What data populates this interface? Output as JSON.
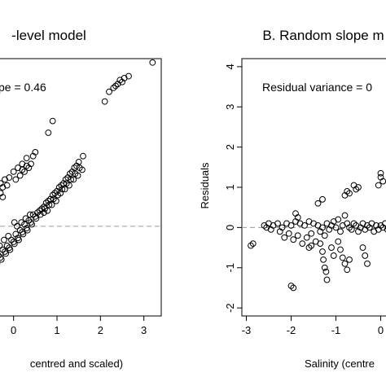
{
  "chart_data": [
    {
      "type": "scatter",
      "title": "-level model",
      "xlabel": "centred and scaled)",
      "ylabel": "",
      "annotation": "pe = 0.46",
      "x_ticks": [
        "0",
        "1",
        "2",
        "3"
      ],
      "xlim": [
        -0.5,
        3.4
      ],
      "ylim": [
        -2.3,
        4.3
      ],
      "reference_line_y": 0,
      "grid": false,
      "marker": "open-circle",
      "series": [
        {
          "points": [
            [
              -0.3,
              1.1
            ],
            [
              -0.2,
              1.2
            ],
            [
              -0.1,
              1.25
            ],
            [
              0.0,
              1.4
            ],
            [
              0.1,
              1.5
            ],
            [
              0.2,
              1.6
            ],
            [
              0.3,
              1.75
            ],
            [
              0.4,
              1.6
            ],
            [
              0.35,
              1.5
            ],
            [
              0.25,
              1.4
            ],
            [
              0.15,
              1.3
            ],
            [
              0.05,
              1.2
            ],
            [
              -0.4,
              0.9
            ],
            [
              -0.3,
              0.85
            ],
            [
              -0.25,
              1.0
            ],
            [
              -0.15,
              1.05
            ],
            [
              0.45,
              1.8
            ],
            [
              0.5,
              1.9
            ],
            [
              0.3,
              1.55
            ],
            [
              0.2,
              1.45
            ],
            [
              0.8,
              2.4
            ],
            [
              0.9,
              2.7
            ],
            [
              -0.25,
              0.75
            ],
            [
              0.02,
              0.1
            ],
            [
              -0.4,
              -0.9
            ],
            [
              -0.3,
              -0.8
            ],
            [
              -0.2,
              -0.65
            ],
            [
              -0.1,
              -0.55
            ],
            [
              0.0,
              -0.4
            ],
            [
              0.1,
              -0.3
            ],
            [
              0.2,
              -0.15
            ],
            [
              0.3,
              -0.05
            ],
            [
              0.4,
              0.1
            ],
            [
              0.5,
              0.25
            ],
            [
              0.6,
              0.4
            ],
            [
              0.7,
              0.5
            ],
            [
              0.8,
              0.65
            ],
            [
              0.9,
              0.8
            ],
            [
              1.0,
              0.9
            ],
            [
              1.1,
              1.05
            ],
            [
              1.2,
              1.2
            ],
            [
              1.3,
              1.35
            ],
            [
              1.4,
              1.5
            ],
            [
              1.5,
              1.65
            ],
            [
              1.6,
              1.8
            ],
            [
              -0.35,
              -0.75
            ],
            [
              -0.25,
              -0.6
            ],
            [
              -0.15,
              -0.5
            ],
            [
              -0.05,
              -0.35
            ],
            [
              0.05,
              -0.2
            ],
            [
              0.15,
              -0.1
            ],
            [
              0.25,
              0.05
            ],
            [
              0.35,
              0.15
            ],
            [
              0.45,
              0.3
            ],
            [
              0.55,
              0.35
            ],
            [
              0.65,
              0.45
            ],
            [
              0.75,
              0.6
            ],
            [
              0.85,
              0.7
            ],
            [
              0.95,
              0.85
            ],
            [
              1.05,
              1.0
            ],
            [
              1.15,
              1.1
            ],
            [
              1.25,
              1.25
            ],
            [
              1.35,
              1.4
            ],
            [
              1.45,
              1.55
            ],
            [
              -0.38,
              -0.95
            ],
            [
              -0.28,
              -0.85
            ],
            [
              -0.18,
              -0.7
            ],
            [
              -0.08,
              -0.6
            ],
            [
              0.02,
              -0.45
            ],
            [
              0.12,
              -0.35
            ],
            [
              0.22,
              -0.2
            ],
            [
              0.32,
              -0.1
            ],
            [
              0.42,
              0.05
            ],
            [
              0.52,
              0.2
            ],
            [
              0.62,
              0.3
            ],
            [
              0.72,
              0.45
            ],
            [
              0.82,
              0.55
            ],
            [
              0.92,
              0.7
            ],
            [
              1.02,
              0.8
            ],
            [
              1.12,
              0.95
            ],
            [
              1.22,
              1.1
            ],
            [
              1.32,
              1.2
            ],
            [
              1.42,
              1.35
            ],
            [
              1.52,
              1.5
            ],
            [
              -0.42,
              -0.6
            ],
            [
              -0.32,
              -0.5
            ],
            [
              -0.22,
              -0.35
            ],
            [
              -0.12,
              -0.25
            ],
            [
              0.08,
              0.0
            ],
            [
              0.18,
              0.1
            ],
            [
              0.28,
              0.2
            ],
            [
              0.38,
              0.3
            ],
            [
              0.7,
              0.35
            ],
            [
              0.78,
              0.4
            ],
            [
              0.88,
              0.55
            ],
            [
              0.98,
              0.65
            ],
            [
              1.08,
              0.85
            ],
            [
              1.18,
              0.95
            ],
            [
              1.28,
              1.05
            ],
            [
              1.38,
              1.2
            ],
            [
              1.48,
              1.3
            ],
            [
              1.58,
              1.45
            ],
            [
              2.1,
              3.2
            ],
            [
              2.2,
              3.45
            ],
            [
              2.3,
              3.55
            ],
            [
              2.35,
              3.6
            ],
            [
              2.4,
              3.65
            ],
            [
              2.45,
              3.75
            ],
            [
              2.5,
              3.7
            ],
            [
              2.55,
              3.8
            ],
            [
              2.65,
              3.85
            ],
            [
              3.2,
              4.2
            ]
          ]
        }
      ]
    },
    {
      "type": "scatter",
      "title": "B. Random slope m",
      "xlabel": "Salinity (centre",
      "ylabel": "Residuals",
      "annotation": "Residual variance = 0",
      "x_ticks": [
        "-3",
        "-2",
        "-1",
        "0"
      ],
      "y_ticks": [
        "-2",
        "-1",
        "0",
        "1",
        "2",
        "3",
        "4"
      ],
      "xlim": [
        -3.1,
        0.3
      ],
      "ylim": [
        -2.2,
        4.2
      ],
      "reference_line_y": 0,
      "grid": false,
      "marker": "open-circle",
      "series": [
        {
          "points": [
            [
              -2.9,
              -0.45
            ],
            [
              -2.85,
              -0.4
            ],
            [
              -2.6,
              0.05
            ],
            [
              -2.55,
              0.0
            ],
            [
              -2.5,
              0.1
            ],
            [
              -2.45,
              -0.05
            ],
            [
              -2.4,
              0.05
            ],
            [
              -2.3,
              0.1
            ],
            [
              -2.25,
              -0.1
            ],
            [
              -2.2,
              0.0
            ],
            [
              -2.1,
              0.1
            ],
            [
              -2.05,
              -0.15
            ],
            [
              -2.0,
              0.05
            ],
            [
              -1.95,
              -0.3
            ],
            [
              -1.9,
              0.15
            ],
            [
              -1.85,
              -0.2
            ],
            [
              -1.8,
              0.1
            ],
            [
              -1.75,
              -0.4
            ],
            [
              -1.7,
              0.05
            ],
            [
              -1.65,
              -0.25
            ],
            [
              -1.6,
              0.15
            ],
            [
              -1.55,
              -0.15
            ],
            [
              -1.5,
              0.1
            ],
            [
              -1.45,
              -0.35
            ],
            [
              -1.4,
              0.05
            ],
            [
              -1.35,
              -0.1
            ],
            [
              -1.3,
              0.0
            ],
            [
              -1.25,
              -0.2
            ],
            [
              -1.2,
              0.1
            ],
            [
              -1.15,
              -0.05
            ],
            [
              -1.1,
              0.05
            ],
            [
              -1.05,
              0.15
            ],
            [
              -1.0,
              0.0
            ],
            [
              -0.95,
              0.2
            ],
            [
              -0.9,
              -0.1
            ],
            [
              -0.85,
              0.05
            ],
            [
              -0.8,
              0.3
            ],
            [
              -0.75,
              0.1
            ],
            [
              -0.7,
              0.0
            ],
            [
              -0.65,
              -0.05
            ],
            [
              -0.6,
              0.1
            ],
            [
              -0.55,
              0.05
            ],
            [
              -0.5,
              -0.1
            ],
            [
              -0.45,
              0.0
            ],
            [
              -0.4,
              0.1
            ],
            [
              -0.35,
              -0.05
            ],
            [
              -0.3,
              0.05
            ],
            [
              -0.25,
              0.0
            ],
            [
              -0.2,
              0.1
            ],
            [
              -0.15,
              -0.1
            ],
            [
              -0.1,
              0.05
            ],
            [
              -0.05,
              -0.05
            ],
            [
              0.0,
              0.05
            ],
            [
              0.05,
              0.0
            ],
            [
              0.1,
              0.1
            ],
            [
              0.15,
              -0.05
            ],
            [
              0.2,
              0.05
            ],
            [
              -1.9,
              0.35
            ],
            [
              -1.85,
              0.25
            ],
            [
              -2.15,
              -0.25
            ],
            [
              -1.6,
              -0.5
            ],
            [
              -1.55,
              -0.45
            ],
            [
              -2.0,
              -1.45
            ],
            [
              -1.95,
              -1.5
            ],
            [
              -1.35,
              -0.4
            ],
            [
              -1.3,
              -0.6
            ],
            [
              -1.28,
              -0.8
            ],
            [
              -1.25,
              -1.0
            ],
            [
              -1.22,
              -1.1
            ],
            [
              -1.2,
              -1.3
            ],
            [
              -1.1,
              -0.5
            ],
            [
              -1.05,
              -0.7
            ],
            [
              -0.95,
              -0.35
            ],
            [
              -0.9,
              -0.55
            ],
            [
              -0.85,
              -0.75
            ],
            [
              -0.8,
              -0.9
            ],
            [
              -0.75,
              -1.05
            ],
            [
              -0.7,
              -0.8
            ],
            [
              -0.4,
              -0.5
            ],
            [
              -0.35,
              -0.7
            ],
            [
              -0.3,
              -0.9
            ],
            [
              -1.4,
              0.6
            ],
            [
              -1.3,
              0.7
            ],
            [
              -0.8,
              0.8
            ],
            [
              -0.75,
              0.9
            ],
            [
              -0.7,
              0.85
            ],
            [
              -0.6,
              1.05
            ],
            [
              -0.55,
              0.95
            ],
            [
              -0.5,
              1.0
            ],
            [
              -0.05,
              1.05
            ],
            [
              0.0,
              1.25
            ],
            [
              0.05,
              1.15
            ],
            [
              0.0,
              1.35
            ]
          ]
        }
      ]
    }
  ]
}
